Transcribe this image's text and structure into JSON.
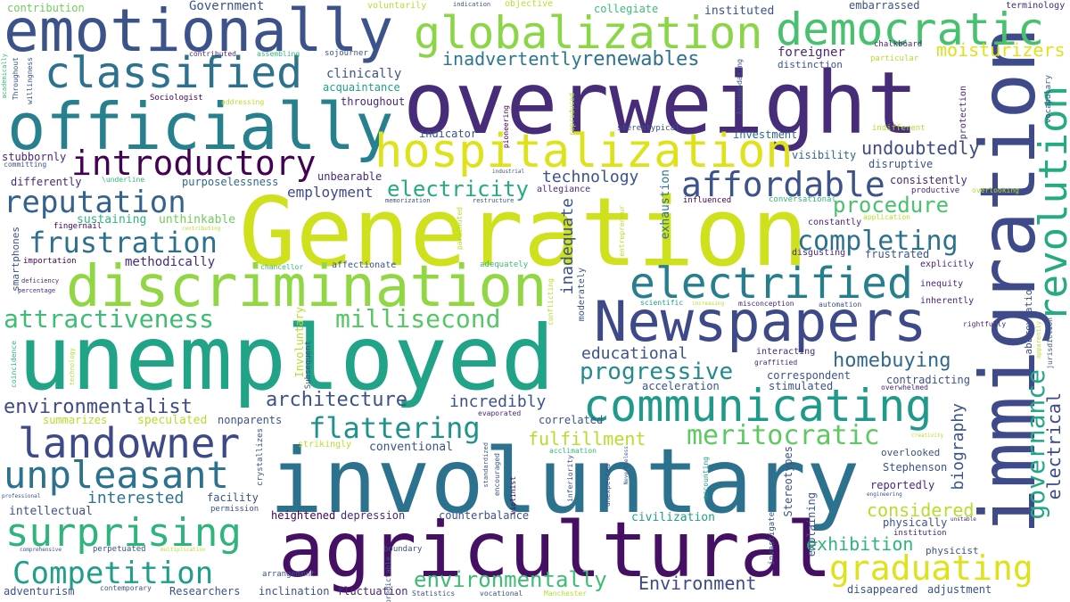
{
  "colors": {
    "background": "#ffffff",
    "palette": [
      "#440154",
      "#482878",
      "#3e4989",
      "#31688e",
      "#26828e",
      "#1f9e89",
      "#35b779",
      "#6ece58",
      "#b5de2b",
      "#fde725"
    ]
  },
  "words": {
    "generation": "Generation",
    "overweight": "overweight",
    "unemployed": "unemployed",
    "involuntary": "involuntary",
    "agricultural": "agricultural",
    "immigration": "immigration",
    "emotionally": "emotionally",
    "officially": "officially",
    "discrimination": "discrimination",
    "newspapers": "Newspapers",
    "hospitalization": "hospitalization",
    "globalization": "globalization",
    "democratic": "democratic",
    "communicating": "communicating",
    "classified": "classified",
    "electrified": "electrified",
    "revolution": "revolution",
    "introductory": "introductory",
    "affordable": "affordable",
    "landowner": "landowner",
    "unpleasant": "unpleasant",
    "surprising": "surprising",
    "competition": "Competition",
    "graduating": "graduating",
    "reputation": "reputation",
    "frustration": "frustration",
    "completing": "completing",
    "meritocratic": "meritocratic",
    "flattering": "flattering",
    "attractiveness": "attractiveness",
    "millisecond": "millisecond",
    "governance": "governance",
    "electricity": "electricity",
    "progressive": "progressive",
    "environmentally": "environmentally",
    "renewables": "renewables",
    "procedure": "procedure",
    "environmentalist": "environmentalist",
    "architecture": "architecture",
    "inadvertently": "inadvertently",
    "moisturizers": "moisturizers",
    "homebuying": "homebuying",
    "fulfillment": "fulfillment",
    "electrical": "electrical",
    "undoubtedly": "undoubtedly",
    "exhibition": "exhibition",
    "considered": "considered",
    "biography": "biography",
    "technology": "technology",
    "incredibly": "incredibly",
    "educational": "educational",
    "employment": "employment",
    "environment": "Environment",
    "interested": "interested",
    "methodically": "methodically",
    "contribution": "contribution",
    "government": "Government",
    "collegiate": "collegiate",
    "instituted": "instituted",
    "embarrassed": "embarrassed",
    "terminology": "terminology",
    "voluntarily": "voluntarily",
    "indication": "indication",
    "objective": "objective",
    "foreigner": "foreigner",
    "distinction": "distinction",
    "chalkboard": "chalkboard",
    "particular": "particular",
    "clinically": "clinically",
    "acquaintance": "acquaintance",
    "throughout": "throughout",
    "throughout_v": "Throughout",
    "sojourner": "sojourner",
    "contributed": "contributed",
    "assembling": "assembling",
    "sociologist": "Sociologist",
    "addressing": "addressing",
    "indicator": "indicator",
    "stereotypical": "stereotypical",
    "investment": "investment",
    "visibility": "visibility",
    "disruptive": "disruptive",
    "consistently": "consistently",
    "indifferent": "indifferent",
    "protection": "protection",
    "vocabulary": "vocabulary",
    "accommodating": "Accommodating",
    "unbearable": "unbearable",
    "purposelessness": "purposelessness",
    "differently": "differently",
    "underline": "\\underline",
    "stubbornly": "stubbornly",
    "committing": "committing",
    "industrial": "industrial",
    "memorization": "memorization",
    "restructure": "restructure",
    "allegiance": "allegiance",
    "influenced": "influenced",
    "conversational": "conversational",
    "productive": "productive",
    "overlooking": "overlooking",
    "sustaining": "sustaining",
    "unthinkable": "unthinkable",
    "contributing": "contributing",
    "fingernail": "fingernail",
    "constantly": "constantly",
    "application": "application",
    "frustrated": "frustrated",
    "disgusting": "disgusting",
    "explicitly": "explicitly",
    "importation": "importation",
    "chancellor": "chancellor",
    "affectionate": "affectionate",
    "adequately": "adequately",
    "inequity": "inequity",
    "inherently": "inherently",
    "deficiency": "deficiency",
    "percentage": "percentage",
    "automation": "automation",
    "misconception": "misconception",
    "scientific": "scientific",
    "rightfully": "rightfully",
    "interacting": "interacting",
    "graffitied": "graffitied",
    "correspondent": "correspondent",
    "contradicting": "contradicting",
    "acceleration": "acceleration",
    "stimulated": "stimulated",
    "overwhelmed": "overwhelmed",
    "evaporated": "evaporated",
    "correlated": "correlated",
    "summarizes": "summarizes",
    "speculated": "speculated",
    "nonparents": "nonparents",
    "conventional": "conventional",
    "strikingly": "strikingly",
    "acclimation": "acclimation",
    "overlooked": "overlooked",
    "stephenson": "Stephenson",
    "reportedly": "reportedly",
    "creativity": "creativity",
    "facility": "facility",
    "intellectual": "intellectual",
    "permission": "permission",
    "heightened": "heightened",
    "depression": "depression",
    "counterbalance": "counterbalance",
    "civilization": "civilization",
    "institution": "institution",
    "physically": "physically",
    "unstable": "unstable",
    "engineering": "engineering",
    "professional": "professional",
    "comprehensive": "comprehensive",
    "perpetuated": "perpetuated",
    "multiplication": "multiplication",
    "boundary": "boundary",
    "arrangement": "arrangement",
    "physicist": "physicist",
    "adventurism": "adventurism",
    "contemporary": "contemporary",
    "researchers": "Researchers",
    "inclination": "inclination",
    "fluctuation": "fluctuation",
    "statistics": "Statistics",
    "vocational": "vocational",
    "manchester": "Manchester",
    "disappeared": "disappeared",
    "adjustment": "adjustment",
    "academically": "academically",
    "willingness": "willingness",
    "smartphones": "smartphones",
    "coincidence": "coincidence",
    "technology_v": "technology",
    "involuntary_v": "Involuntary",
    "subsequent": "Subsequent",
    "reproduced": "reproduced",
    "pioneering": "pioneering",
    "parachuted": "parachuted",
    "entrepreneur": "entrepreneur",
    "exhaustion": "exhaustion",
    "inadequate": "inadequate",
    "moderately": "moderately",
    "conflicting": "conflicting",
    "increasing": "increasing",
    "crystallizes": "crystallizes",
    "standardized": "standardized",
    "encouraged": "encouraged",
    "violinist": "violinist",
    "inferiority": "inferiority",
    "unexpected": "unexpected",
    "nevertheless": "Nevertheless",
    "accounting": "accounting",
    "stereotypes": "Stereotypes",
    "investigate": "investigate",
    "explaining": "explaining",
    "predictable": "predictable",
    "abbreviation": "abbreviation",
    "apparently": "apparently",
    "jurisdiction": "jurisdiction"
  }
}
